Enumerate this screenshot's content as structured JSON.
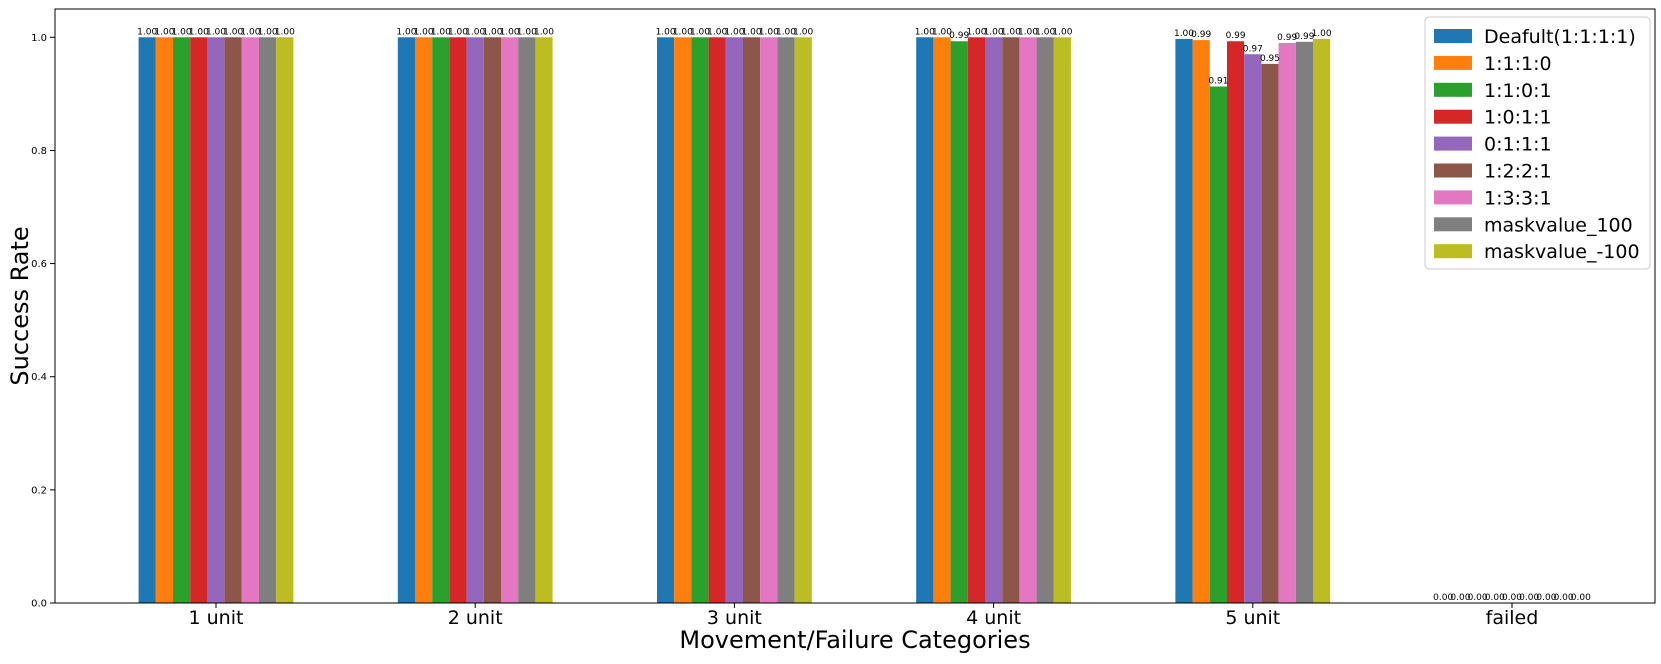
{
  "chart_data": {
    "type": "bar",
    "xlabel": "Movement/Failure Categories",
    "ylabel": "Success Rate",
    "ylim": [
      0.0,
      1.05
    ],
    "yticks": [
      "0.0",
      "0.2",
      "0.4",
      "0.6",
      "0.8",
      "1.0"
    ],
    "grid": false,
    "legend_position": "top-right",
    "categories": [
      "1 unit",
      "2 unit",
      "3 unit",
      "4 unit",
      "5 unit",
      "failed"
    ],
    "series": [
      {
        "name": "Deafult(1:1:1:1)",
        "color": "#1f77b4",
        "values": [
          1.0,
          1.0,
          1.0,
          1.0,
          0.997,
          0.0
        ],
        "labels": [
          "1.00",
          "1.00",
          "1.00",
          "1.00",
          "1.00",
          "0.00"
        ]
      },
      {
        "name": "1:1:1:0",
        "color": "#ff7f0e",
        "values": [
          1.0,
          1.0,
          1.0,
          1.0,
          0.995,
          0.0
        ],
        "labels": [
          "1.00",
          "1.00",
          "1.00",
          "1.00",
          "0.99",
          "0.00"
        ]
      },
      {
        "name": "1:1:0:1",
        "color": "#2ca02c",
        "values": [
          1.0,
          1.0,
          1.0,
          0.993,
          0.913,
          0.0
        ],
        "labels": [
          "1.00",
          "1.00",
          "1.00",
          "0.99",
          "0.91",
          "0.00"
        ]
      },
      {
        "name": "1:0:1:1",
        "color": "#d62728",
        "values": [
          1.0,
          1.0,
          1.0,
          1.0,
          0.993,
          0.0
        ],
        "labels": [
          "1.00",
          "1.00",
          "1.00",
          "1.00",
          "0.99",
          "0.00"
        ]
      },
      {
        "name": "0:1:1:1",
        "color": "#9467bd",
        "values": [
          1.0,
          1.0,
          1.0,
          1.0,
          0.97,
          0.0
        ],
        "labels": [
          "1.00",
          "1.00",
          "1.00",
          "1.00",
          "0.97",
          "0.00"
        ]
      },
      {
        "name": "1:2:2:1",
        "color": "#8c564b",
        "values": [
          1.0,
          1.0,
          1.0,
          1.0,
          0.953,
          0.0
        ],
        "labels": [
          "1.00",
          "1.00",
          "1.00",
          "1.00",
          "0.95",
          "0.00"
        ]
      },
      {
        "name": "1:3:3:1",
        "color": "#e377c2",
        "values": [
          1.0,
          1.0,
          1.0,
          1.0,
          0.99,
          0.0
        ],
        "labels": [
          "1.00",
          "1.00",
          "1.00",
          "1.00",
          "0.99",
          "0.00"
        ]
      },
      {
        "name": "maskvalue_100",
        "color": "#7f7f7f",
        "values": [
          1.0,
          1.0,
          1.0,
          1.0,
          0.992,
          0.0
        ],
        "labels": [
          "1.00",
          "1.00",
          "1.00",
          "1.00",
          "0.99",
          "0.00"
        ]
      },
      {
        "name": "maskvalue_-100",
        "color": "#bcbd22",
        "values": [
          1.0,
          1.0,
          1.0,
          1.0,
          0.997,
          0.0
        ],
        "labels": [
          "1.00",
          "1.00",
          "1.00",
          "1.00",
          "1.00",
          "0.00"
        ]
      }
    ]
  }
}
